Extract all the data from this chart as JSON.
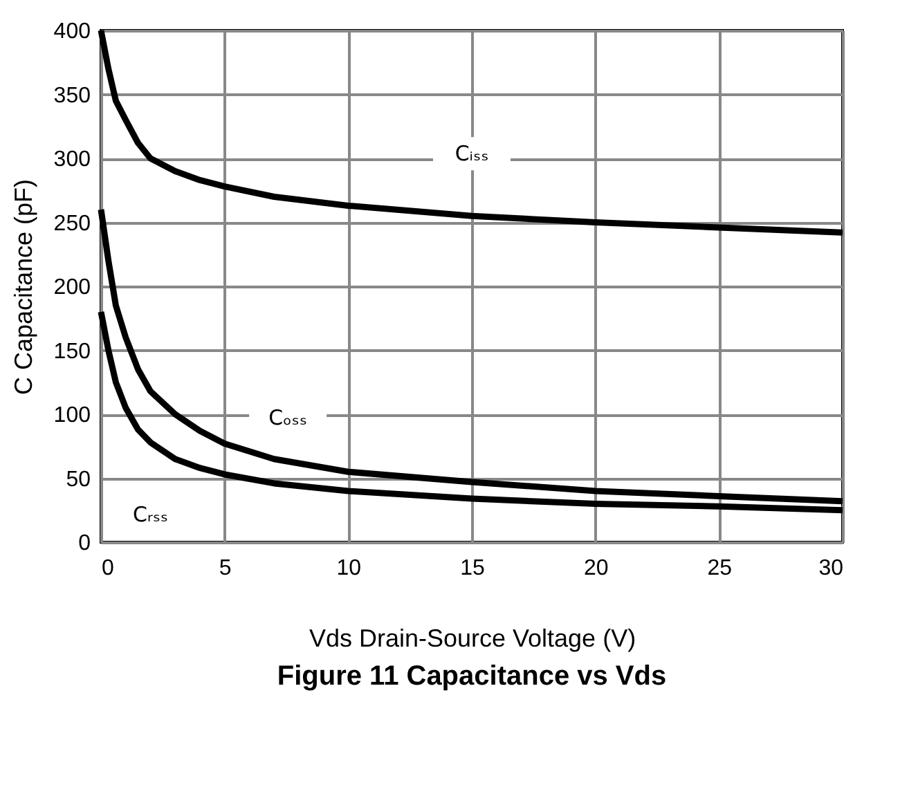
{
  "chart_data": {
    "type": "line",
    "title": "Figure 11 Capacitance vs Vds",
    "xlabel": "Vds Drain-Source Voltage (V)",
    "ylabel": "C Capacitance (pF)",
    "xlim": [
      0,
      30
    ],
    "xticks": [
      0,
      5,
      10,
      15,
      20,
      25,
      30
    ],
    "ylim": [
      0,
      400
    ],
    "yticks": [
      0,
      50,
      100,
      150,
      200,
      250,
      300,
      350,
      400
    ],
    "grid": true,
    "marker": "none",
    "line_style": "solid",
    "series": [
      {
        "name": "Cᵢₛₛ",
        "color": "#000000",
        "x": [
          0,
          0.3,
          0.6,
          1,
          1.5,
          2,
          3,
          4,
          5,
          7,
          10,
          15,
          20,
          25,
          30
        ],
        "values": [
          400,
          370,
          345,
          330,
          312,
          300,
          290,
          283,
          278,
          270,
          263,
          255,
          250,
          246,
          242
        ]
      },
      {
        "name": "Cₒₛₛ",
        "color": "#000000",
        "x": [
          0,
          0.3,
          0.6,
          1,
          1.5,
          2,
          3,
          4,
          5,
          7,
          10,
          15,
          20,
          25,
          30
        ],
        "values": [
          260,
          220,
          185,
          160,
          135,
          118,
          100,
          87,
          77,
          65,
          55,
          47,
          40,
          36,
          32
        ]
      },
      {
        "name": "Cᵣₛₛ",
        "color": "#000000",
        "x": [
          0,
          0.3,
          0.6,
          1,
          1.5,
          2,
          3,
          4,
          5,
          7,
          10,
          15,
          20,
          25,
          30
        ],
        "values": [
          180,
          150,
          125,
          105,
          88,
          78,
          65,
          58,
          53,
          46,
          40,
          34,
          30,
          28,
          25
        ]
      }
    ]
  }
}
